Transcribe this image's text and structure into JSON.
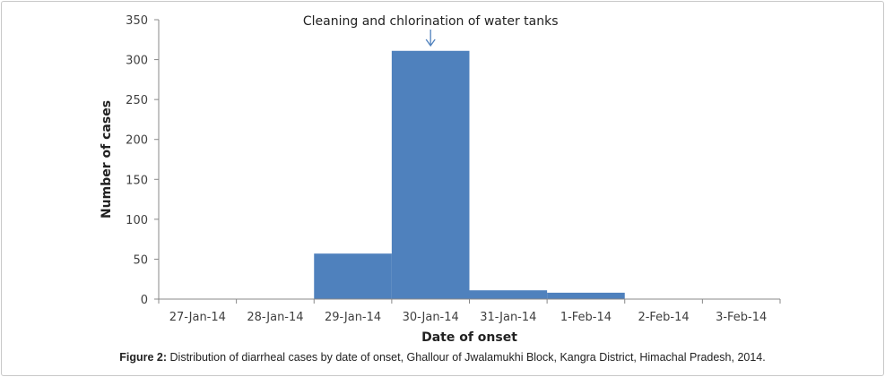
{
  "chart_data": {
    "type": "bar",
    "title": "",
    "xlabel": "Date of onset",
    "ylabel": "Number of cases",
    "categories": [
      "27-Jan-14",
      "28-Jan-14",
      "29-Jan-14",
      "30-Jan-14",
      "31-Jan-14",
      "1-Feb-14",
      "2-Feb-14",
      "3-Feb-14"
    ],
    "values": [
      0,
      0,
      57,
      311,
      11,
      8,
      0,
      0
    ],
    "ylim": [
      0,
      350
    ],
    "yticks": [
      0,
      50,
      100,
      150,
      200,
      250,
      300,
      350
    ],
    "grid": false,
    "bar_color": "#4f81bd",
    "annotation": {
      "text": "Cleaning and chlorination of water tanks",
      "category": "30-Jan-14",
      "arrow": "down"
    }
  },
  "caption": {
    "label": "Figure 2:",
    "text": " Distribution of diarrheal cases by date of onset, Ghallour of Jwalamukhi Block, Kangra District, Himachal Pradesh, 2014."
  }
}
